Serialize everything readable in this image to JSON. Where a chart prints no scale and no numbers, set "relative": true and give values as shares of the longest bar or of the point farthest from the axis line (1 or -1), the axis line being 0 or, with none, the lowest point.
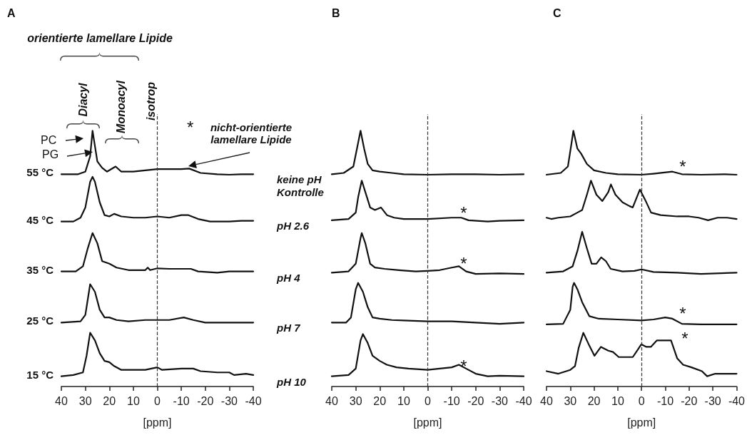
{
  "chart_data": [
    {
      "type": "line",
      "relative": true,
      "xlim": [
        40,
        -40
      ],
      "xticks": [
        40,
        30,
        20,
        10,
        0,
        -10,
        -20,
        -30,
        -40
      ],
      "xlabel": "[ppm]",
      "grid": false,
      "legend": false,
      "marker": "none",
      "line_style": "solid",
      "ref_lines": [
        {
          "axis": "x",
          "value": 0,
          "color": "#333333",
          "line_style": "dashed"
        }
      ],
      "annotations": [
        "A",
        "orientierte lamellare Lipide",
        "Diacyl",
        "Monoacyl",
        "isotrop",
        "PC",
        "PG",
        "*",
        "nicht-orientierte lamellare Lipide"
      ],
      "series": [
        {
          "name": "55 °C",
          "color": "#111111",
          "x": [
            40,
            33,
            30,
            28,
            27,
            25,
            23,
            21,
            17.4,
            15,
            10,
            5,
            0,
            -5,
            -10,
            -13.3,
            -18,
            -25,
            -30,
            -35,
            -40
          ],
          "values": [
            0.83,
            0.83,
            0.84,
            0.9,
            1.0,
            0.88,
            0.855,
            0.84,
            0.86,
            0.84,
            0.84,
            0.845,
            0.85,
            0.85,
            0.85,
            0.852,
            0.835,
            0.83,
            0.828,
            0.83,
            0.83
          ]
        },
        {
          "name": "45 °C",
          "color": "#111111",
          "x": [
            40,
            35,
            32,
            30,
            28,
            27,
            26,
            24,
            22,
            20,
            18,
            15,
            10,
            5,
            0,
            -5,
            -10,
            -13,
            -17,
            -22,
            -30,
            -35,
            -40
          ],
          "values": [
            0.645,
            0.645,
            0.66,
            0.7,
            0.8,
            0.82,
            0.8,
            0.72,
            0.67,
            0.665,
            0.675,
            0.665,
            0.66,
            0.66,
            0.665,
            0.66,
            0.67,
            0.67,
            0.655,
            0.645,
            0.645,
            0.648,
            0.648
          ]
        },
        {
          "name": "35 °C",
          "color": "#111111",
          "x": [
            40,
            34,
            31,
            29,
            27,
            25,
            23,
            20,
            17,
            12,
            5,
            4,
            3,
            0,
            -5,
            -14,
            -17,
            -25,
            -30,
            -40
          ],
          "values": [
            0.45,
            0.45,
            0.47,
            0.54,
            0.6,
            0.56,
            0.49,
            0.48,
            0.465,
            0.455,
            0.455,
            0.465,
            0.455,
            0.462,
            0.46,
            0.46,
            0.45,
            0.445,
            0.45,
            0.45
          ]
        },
        {
          "name": "25 °C",
          "color": "#111111",
          "x": [
            40,
            32,
            30,
            28,
            26,
            24,
            22,
            20,
            17,
            12,
            5,
            0,
            -5,
            -11,
            -15,
            -20,
            -30,
            -40
          ],
          "values": [
            0.25,
            0.255,
            0.28,
            0.4,
            0.37,
            0.3,
            0.27,
            0.27,
            0.26,
            0.255,
            0.26,
            0.26,
            0.26,
            0.27,
            0.26,
            0.25,
            0.25,
            0.25
          ]
        },
        {
          "name": "15 °C",
          "color": "#111111",
          "x": [
            40,
            35,
            31,
            29.5,
            28,
            26,
            24,
            22,
            20,
            18,
            15,
            10,
            5,
            0,
            -2,
            -10,
            -15,
            -18,
            -25,
            -30,
            -32,
            -37,
            -40
          ],
          "values": [
            0.04,
            0.045,
            0.055,
            0.12,
            0.21,
            0.18,
            0.13,
            0.1,
            0.095,
            0.08,
            0.065,
            0.065,
            0.065,
            0.075,
            0.065,
            0.07,
            0.07,
            0.06,
            0.055,
            0.055,
            0.045,
            0.05,
            0.045
          ]
        }
      ]
    },
    {
      "type": "line",
      "relative": true,
      "xlim": [
        40,
        -40
      ],
      "xticks": [
        40,
        30,
        20,
        10,
        0,
        -10,
        -20,
        -30,
        -40
      ],
      "xlabel": "[ppm]",
      "grid": false,
      "legend": false,
      "marker": "none",
      "line_style": "solid",
      "ref_lines": [
        {
          "axis": "x",
          "value": 0,
          "color": "#333333",
          "line_style": "dashed"
        }
      ],
      "annotations": [
        "B",
        "*",
        "*",
        "*"
      ],
      "series": [
        {
          "name": "keine pH Kontrolle",
          "color": "#111111",
          "x": [
            40,
            35,
            31,
            29.5,
            28,
            26.5,
            25,
            23,
            20,
            15,
            10,
            0,
            -10,
            -20,
            -30,
            -40
          ],
          "values": [
            0.83,
            0.835,
            0.86,
            0.93,
            1.0,
            0.93,
            0.87,
            0.845,
            0.84,
            0.835,
            0.83,
            0.828,
            0.83,
            0.83,
            0.828,
            0.83
          ]
        },
        {
          "name": "pH 2.6",
          "color": "#111111",
          "x": [
            40,
            33,
            30,
            29,
            27.5,
            26,
            24,
            22,
            19.5,
            17,
            14,
            10,
            0,
            -10,
            -14,
            -17,
            -25,
            -30,
            -40
          ],
          "values": [
            0.65,
            0.655,
            0.68,
            0.74,
            0.805,
            0.76,
            0.7,
            0.69,
            0.7,
            0.67,
            0.66,
            0.655,
            0.655,
            0.66,
            0.66,
            0.65,
            0.645,
            0.648,
            0.65
          ]
        },
        {
          "name": "pH 4",
          "color": "#111111",
          "x": [
            40,
            33,
            30,
            28,
            27.5,
            26,
            24,
            22,
            18,
            12,
            5,
            0,
            -5,
            -10,
            -13,
            -16,
            -20,
            -30,
            -40
          ],
          "values": [
            0.445,
            0.45,
            0.48,
            0.58,
            0.6,
            0.56,
            0.48,
            0.465,
            0.46,
            0.455,
            0.45,
            0.452,
            0.455,
            0.465,
            0.47,
            0.45,
            0.44,
            0.442,
            0.44
          ]
        },
        {
          "name": "pH 7",
          "color": "#111111",
          "x": [
            40,
            34,
            32,
            30,
            29,
            27,
            25,
            23,
            20,
            15,
            10,
            0,
            -10,
            -20,
            -30,
            -40
          ],
          "values": [
            0.25,
            0.25,
            0.27,
            0.38,
            0.405,
            0.37,
            0.31,
            0.27,
            0.265,
            0.26,
            0.258,
            0.255,
            0.255,
            0.25,
            0.245,
            0.25
          ]
        },
        {
          "name": "pH 10",
          "color": "#111111",
          "x": [
            40,
            33,
            30,
            28,
            27,
            25,
            23,
            20,
            17,
            13,
            8,
            0,
            -5,
            -10,
            -13,
            -16,
            -20,
            -25,
            -30,
            -40
          ],
          "values": [
            0.04,
            0.045,
            0.07,
            0.18,
            0.205,
            0.17,
            0.12,
            0.1,
            0.085,
            0.075,
            0.07,
            0.065,
            0.07,
            0.075,
            0.085,
            0.07,
            0.05,
            0.04,
            0.042,
            0.04
          ]
        }
      ]
    },
    {
      "type": "line",
      "relative": true,
      "xlim": [
        40,
        -40
      ],
      "xticks": [
        40,
        30,
        20,
        10,
        0,
        -10,
        -20,
        -30,
        -40
      ],
      "xlabel": "[ppm]",
      "grid": false,
      "legend": false,
      "marker": "none",
      "line_style": "solid",
      "ref_lines": [
        {
          "axis": "x",
          "value": 0,
          "color": "#333333",
          "line_style": "dashed"
        }
      ],
      "annotations": [
        "C",
        "*",
        "*",
        "*"
      ],
      "series": [
        {
          "color": "#111111",
          "x": [
            40,
            34,
            31,
            29.5,
            28.7,
            27,
            25.4,
            23,
            20,
            15,
            10,
            0,
            -5,
            -13,
            -17,
            -25,
            -35,
            -40
          ],
          "values": [
            0.828,
            0.835,
            0.86,
            0.95,
            1.0,
            0.93,
            0.91,
            0.87,
            0.845,
            0.835,
            0.83,
            0.828,
            0.832,
            0.84,
            0.83,
            0.828,
            0.83,
            0.828
          ]
        },
        {
          "color": "#111111",
          "x": [
            40,
            38,
            35,
            30,
            27,
            25,
            23,
            21.3,
            19,
            16.5,
            14,
            12.9,
            11,
            8,
            5,
            3.7,
            2,
            0.7,
            -1.5,
            -4,
            -8,
            -15,
            -20,
            -24,
            -28,
            -32,
            -36,
            -40
          ],
          "values": [
            0.66,
            0.655,
            0.66,
            0.665,
            0.68,
            0.69,
            0.75,
            0.805,
            0.75,
            0.725,
            0.76,
            0.79,
            0.75,
            0.72,
            0.705,
            0.7,
            0.74,
            0.77,
            0.73,
            0.68,
            0.67,
            0.665,
            0.665,
            0.66,
            0.65,
            0.66,
            0.66,
            0.655
          ]
        },
        {
          "color": "#111111",
          "x": [
            40,
            33,
            29,
            27,
            25,
            23,
            21,
            19,
            17,
            15,
            13,
            8,
            3,
            0,
            -5,
            -15,
            -25,
            -40
          ],
          "values": [
            0.445,
            0.45,
            0.47,
            0.53,
            0.605,
            0.54,
            0.48,
            0.48,
            0.505,
            0.49,
            0.46,
            0.45,
            0.452,
            0.458,
            0.448,
            0.445,
            0.44,
            0.445
          ]
        },
        {
          "color": "#111111",
          "x": [
            40,
            33,
            30,
            29,
            28.4,
            27,
            25,
            22,
            18,
            10,
            0,
            -5,
            -10,
            -13,
            -17,
            -25,
            -40
          ],
          "values": [
            0.243,
            0.245,
            0.3,
            0.39,
            0.405,
            0.38,
            0.33,
            0.275,
            0.265,
            0.262,
            0.258,
            0.262,
            0.27,
            0.265,
            0.245,
            0.243,
            0.243
          ]
        },
        {
          "color": "#111111",
          "x": [
            40,
            35,
            30,
            28,
            26.5,
            24.5,
            22,
            19.8,
            17.1,
            14,
            12,
            9.6,
            5,
            3.7,
            1.5,
            0.1,
            -2,
            -3.9,
            -6.4,
            -12.4,
            -15,
            -17.5,
            -21,
            -25.4,
            -27.6,
            -31,
            -35,
            -40
          ],
          "values": [
            0.06,
            0.05,
            0.065,
            0.08,
            0.15,
            0.21,
            0.16,
            0.12,
            0.155,
            0.14,
            0.135,
            0.115,
            0.115,
            0.115,
            0.145,
            0.165,
            0.155,
            0.155,
            0.18,
            0.18,
            0.11,
            0.085,
            0.075,
            0.06,
            0.04,
            0.05,
            0.05,
            0.05
          ]
        }
      ]
    }
  ]
}
